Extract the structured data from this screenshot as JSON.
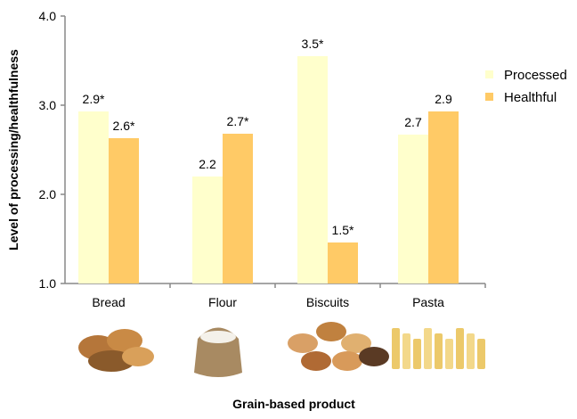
{
  "chart_data": {
    "type": "bar",
    "title": "",
    "xlabel": "Grain-based product",
    "ylabel": "Level of processing/healthfulness",
    "ylim": [
      1.0,
      4.0
    ],
    "yticks": [
      "1.0",
      "2.0",
      "3.0",
      "4.0"
    ],
    "categories": [
      "Bread",
      "Flour",
      "Biscuits",
      "Pasta"
    ],
    "series": [
      {
        "name": "Processed",
        "color": "#FFFFCC",
        "values": [
          2.93,
          2.2,
          3.55,
          2.67
        ],
        "labels": [
          "2.9*",
          "2.2",
          "3.5*",
          "2.7"
        ]
      },
      {
        "name": "Healthful",
        "color": "#FFCA66",
        "values": [
          2.63,
          2.68,
          1.46,
          2.93
        ],
        "labels": [
          "2.6*",
          "2.7*",
          "1.5*",
          "2.9"
        ]
      }
    ],
    "legend": "right",
    "grid": false,
    "category_images": [
      "bread-photo",
      "flour-sack-photo",
      "biscuits-photo",
      "pasta-photo"
    ]
  }
}
